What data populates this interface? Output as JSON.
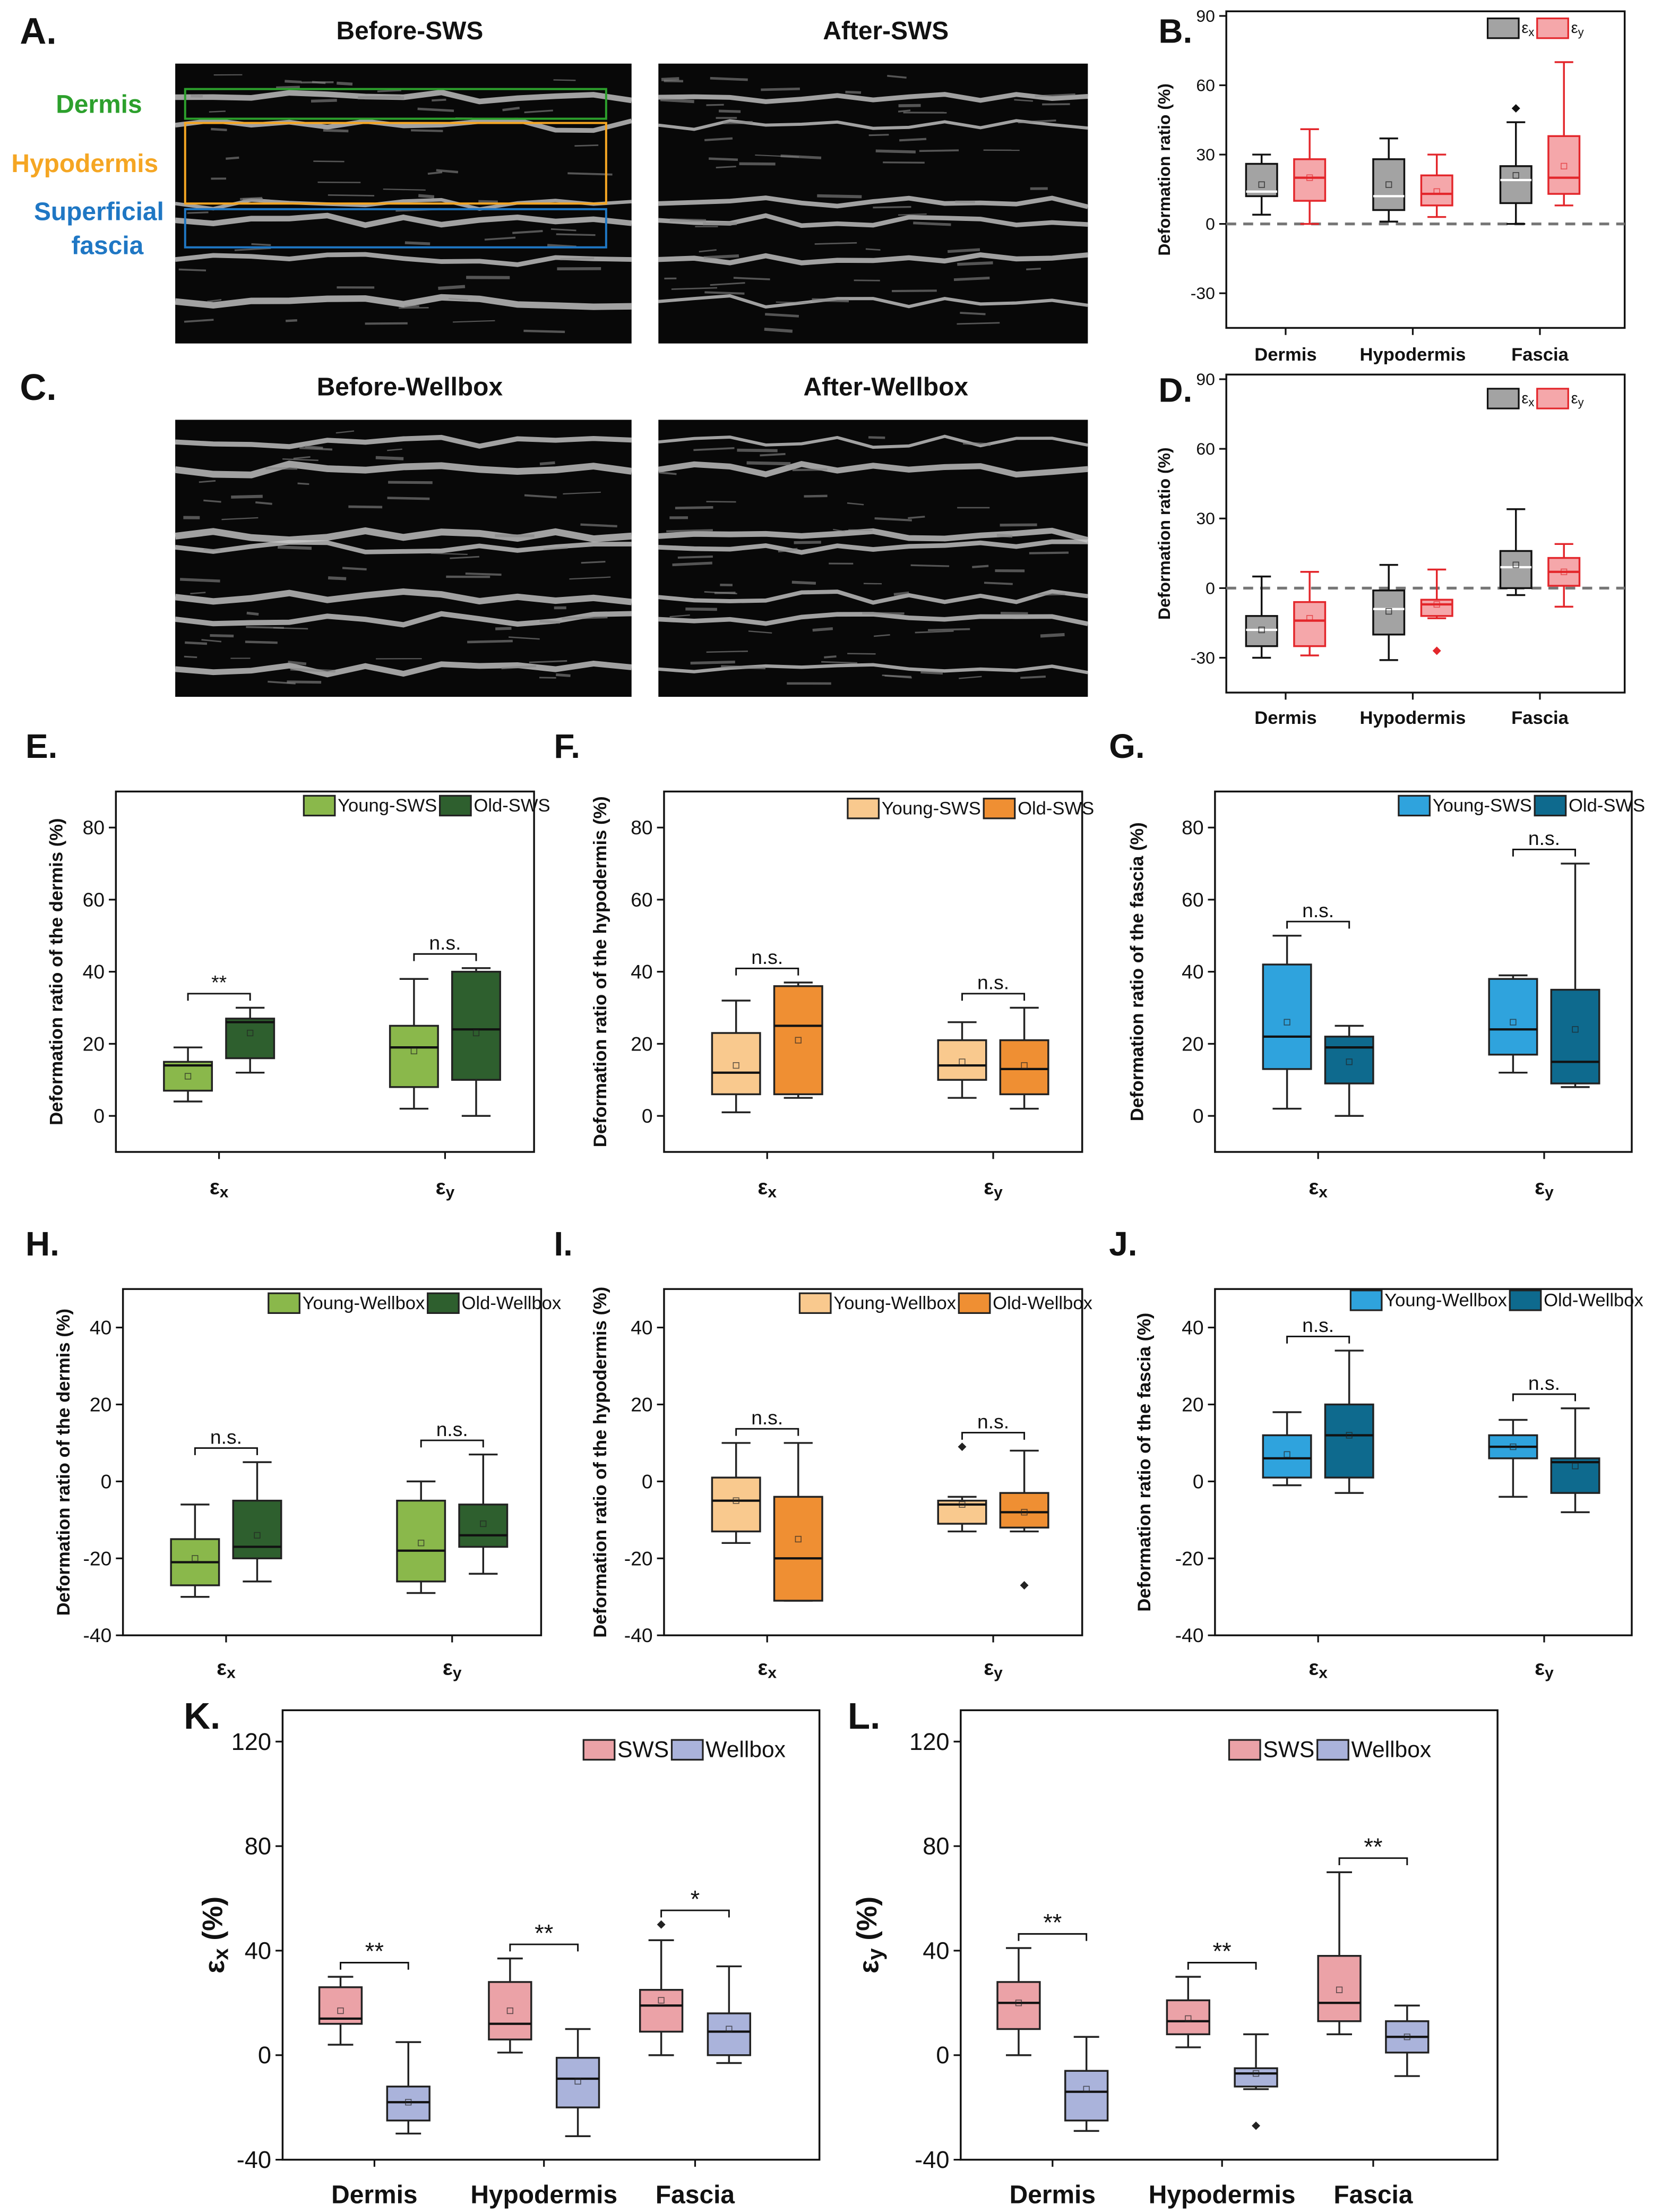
{
  "image_panels": [
    {
      "label": "A.",
      "titles": [
        "Before-SWS",
        "After-SWS"
      ],
      "layers": [
        [
          "Dermis"
        ],
        [
          "Hypodermis"
        ],
        [
          "Superficial",
          "fascia"
        ]
      ]
    },
    {
      "label": "C.",
      "titles": [
        "Before-Wellbox",
        "After-Wellbox"
      ]
    }
  ],
  "chart_data": [
    {
      "type": "box",
      "panel": "B.",
      "ylabel": "Deformation ratio (%)",
      "categories": [
        "Dermis",
        "Hypodermis",
        "Fascia"
      ],
      "ylim": [
        -45,
        92
      ],
      "yticks": [
        -30,
        0,
        30,
        60,
        90
      ],
      "ref_line": 0,
      "legend": "upper right",
      "series": [
        {
          "name": "εx",
          "color": "#a3a3a3",
          "stroke": "#111111",
          "median_color": "#ffffff",
          "boxes": [
            {
              "min": 4,
              "q1": 12,
              "median": 14,
              "q3": 26,
              "max": 30,
              "mean": 17
            },
            {
              "min": 1,
              "q1": 6,
              "median": 12,
              "q3": 28,
              "max": 37,
              "mean": 17
            },
            {
              "min": 0,
              "q1": 9,
              "median": 19,
              "q3": 25,
              "max": 44,
              "mean": 21,
              "outliers": [
                50
              ]
            }
          ]
        },
        {
          "name": "εy",
          "color": "#f5a7aa",
          "stroke": "#e3262b",
          "median_color": "#e3262b",
          "boxes": [
            {
              "min": 0,
              "q1": 10,
              "median": 20,
              "q3": 28,
              "max": 41,
              "mean": 20
            },
            {
              "min": 3,
              "q1": 8,
              "median": 13,
              "q3": 21,
              "max": 30,
              "mean": 14
            },
            {
              "min": 8,
              "q1": 13,
              "median": 20,
              "q3": 38,
              "max": 70,
              "mean": 25
            }
          ]
        }
      ]
    },
    {
      "type": "box",
      "panel": "D.",
      "ylabel": "Deformation ratio (%)",
      "categories": [
        "Dermis",
        "Hypodermis",
        "Fascia"
      ],
      "ylim": [
        -45,
        92
      ],
      "yticks": [
        -30,
        0,
        30,
        60,
        90
      ],
      "ref_line": 0,
      "legend": "upper right",
      "series": [
        {
          "name": "εx",
          "color": "#a3a3a3",
          "stroke": "#111111",
          "median_color": "#ffffff",
          "boxes": [
            {
              "min": -30,
              "q1": -25,
              "median": -18,
              "q3": -12,
              "max": 5,
              "mean": -18
            },
            {
              "min": -31,
              "q1": -20,
              "median": -9,
              "q3": -1,
              "max": 10,
              "mean": -10
            },
            {
              "min": -3,
              "q1": 0,
              "median": 9,
              "q3": 16,
              "max": 34,
              "mean": 10
            }
          ]
        },
        {
          "name": "εy",
          "color": "#f5a7aa",
          "stroke": "#e3262b",
          "median_color": "#e3262b",
          "boxes": [
            {
              "min": -29,
              "q1": -25,
              "median": -14,
              "q3": -6,
              "max": 7,
              "mean": -13
            },
            {
              "min": -13,
              "q1": -12,
              "median": -7,
              "q3": -5,
              "max": 8,
              "mean": -7,
              "outliers": [
                -27
              ]
            },
            {
              "min": -8,
              "q1": 1,
              "median": 7,
              "q3": 13,
              "max": 19,
              "mean": 7
            }
          ]
        }
      ]
    },
    {
      "type": "box",
      "panel": "E.",
      "ylabel": "Deformation ratio of the dermis (%)",
      "categories": [
        "εx",
        "εy"
      ],
      "ylim": [
        -10,
        90
      ],
      "yticks": [
        0,
        20,
        40,
        60,
        80
      ],
      "legend": "upper right",
      "series": [
        {
          "name": "Young-SWS",
          "color": "#8ab84b",
          "boxes": [
            {
              "min": 4,
              "q1": 7,
              "median": 14,
              "q3": 15,
              "max": 19,
              "mean": 11
            },
            {
              "min": 2,
              "q1": 8,
              "median": 19,
              "q3": 25,
              "max": 38,
              "mean": 18
            }
          ]
        },
        {
          "name": "Old-SWS",
          "color": "#2e5f2e",
          "boxes": [
            {
              "min": 12,
              "q1": 16,
              "median": 26,
              "q3": 27,
              "max": 30,
              "mean": 23
            },
            {
              "min": 0,
              "q1": 10,
              "median": 24,
              "q3": 40,
              "max": 41,
              "mean": 23
            }
          ]
        }
      ],
      "brackets": [
        {
          "category": 0,
          "label": "**"
        },
        {
          "category": 1,
          "label": "n.s."
        }
      ]
    },
    {
      "type": "box",
      "panel": "F.",
      "ylabel": "Deformation ratio of the hypodermis (%)",
      "categories": [
        "εx",
        "εy"
      ],
      "ylim": [
        -10,
        90
      ],
      "yticks": [
        0,
        20,
        40,
        60,
        80
      ],
      "legend": "upper right",
      "series": [
        {
          "name": "Young-SWS",
          "color": "#f9c98e",
          "boxes": [
            {
              "min": 1,
              "q1": 6,
              "median": 12,
              "q3": 23,
              "max": 32,
              "mean": 14
            },
            {
              "min": 5,
              "q1": 10,
              "median": 14,
              "q3": 21,
              "max": 26,
              "mean": 15
            }
          ]
        },
        {
          "name": "Old-SWS",
          "color": "#ef8f33",
          "boxes": [
            {
              "min": 5,
              "q1": 6,
              "median": 25,
              "q3": 36,
              "max": 37,
              "mean": 21
            },
            {
              "min": 2,
              "q1": 6,
              "median": 13,
              "q3": 21,
              "max": 30,
              "mean": 14
            }
          ]
        }
      ],
      "brackets": [
        {
          "category": 0,
          "label": "n.s."
        },
        {
          "category": 1,
          "label": "n.s."
        }
      ]
    },
    {
      "type": "box",
      "panel": "G.",
      "ylabel": "Deformation ratio of the fascia (%)",
      "categories": [
        "εx",
        "εy"
      ],
      "ylim": [
        -10,
        90
      ],
      "yticks": [
        0,
        20,
        40,
        60,
        80
      ],
      "legend": "upper right",
      "series": [
        {
          "name": "Young-SWS",
          "color": "#2fa3dd",
          "boxes": [
            {
              "min": 2,
              "q1": 13,
              "median": 22,
              "q3": 42,
              "max": 50,
              "mean": 26
            },
            {
              "min": 12,
              "q1": 17,
              "median": 24,
              "q3": 38,
              "max": 39,
              "mean": 26
            }
          ]
        },
        {
          "name": "Old-SWS",
          "color": "#0e6a8e",
          "boxes": [
            {
              "min": 0,
              "q1": 9,
              "median": 19,
              "q3": 22,
              "max": 25,
              "mean": 15
            },
            {
              "min": 8,
              "q1": 9,
              "median": 15,
              "q3": 35,
              "max": 70,
              "mean": 24
            }
          ]
        }
      ],
      "brackets": [
        {
          "category": 0,
          "label": "n.s."
        },
        {
          "category": 1,
          "label": "n.s."
        }
      ]
    },
    {
      "type": "box",
      "panel": "H.",
      "ylabel": "Deformation ratio of the dermis (%)",
      "categories": [
        "εx",
        "εy"
      ],
      "ylim": [
        -40,
        50
      ],
      "yticks": [
        -40,
        -20,
        0,
        20,
        40
      ],
      "legend": "upper right",
      "series": [
        {
          "name": "Young-Wellbox",
          "color": "#8ab84b",
          "boxes": [
            {
              "min": -30,
              "q1": -27,
              "median": -21,
              "q3": -15,
              "max": -6,
              "mean": -20
            },
            {
              "min": -29,
              "q1": -26,
              "median": -18,
              "q3": -5,
              "max": 0,
              "mean": -16
            }
          ]
        },
        {
          "name": "Old-Wellbox",
          "color": "#2e5f2e",
          "boxes": [
            {
              "min": -26,
              "q1": -20,
              "median": -17,
              "q3": -5,
              "max": 5,
              "mean": -14
            },
            {
              "min": -24,
              "q1": -17,
              "median": -14,
              "q3": -6,
              "max": 7,
              "mean": -11
            }
          ]
        }
      ],
      "brackets": [
        {
          "category": 0,
          "label": "n.s."
        },
        {
          "category": 1,
          "label": "n.s."
        }
      ]
    },
    {
      "type": "box",
      "panel": "I.",
      "ylabel": "Deformation ratio of the hypodermis (%)",
      "categories": [
        "εx",
        "εy"
      ],
      "ylim": [
        -40,
        50
      ],
      "yticks": [
        -40,
        -20,
        0,
        20,
        40
      ],
      "legend": "upper right",
      "series": [
        {
          "name": "Young-Wellbox",
          "color": "#f9c98e",
          "boxes": [
            {
              "min": -16,
              "q1": -13,
              "median": -5,
              "q3": 1,
              "max": 10,
              "mean": -5
            },
            {
              "min": -13,
              "q1": -11,
              "median": -6,
              "q3": -5,
              "max": -4,
              "mean": -6,
              "outliers": [
                9
              ]
            }
          ]
        },
        {
          "name": "Old-Wellbox",
          "color": "#ef8f33",
          "boxes": [
            {
              "min": -31,
              "q1": -31,
              "median": -20,
              "q3": -4,
              "max": 10,
              "mean": -15
            },
            {
              "min": -13,
              "q1": -12,
              "median": -8,
              "q3": -3,
              "max": 8,
              "mean": -8,
              "outliers": [
                -27
              ]
            }
          ]
        }
      ],
      "brackets": [
        {
          "category": 0,
          "label": "n.s."
        },
        {
          "category": 1,
          "label": "n.s."
        }
      ]
    },
    {
      "type": "box",
      "panel": "J.",
      "ylabel": "Deformation ratio of the fascia (%)",
      "categories": [
        "εx",
        "εy"
      ],
      "ylim": [
        -40,
        50
      ],
      "yticks": [
        -40,
        -20,
        0,
        20,
        40
      ],
      "legend": "upper right",
      "series": [
        {
          "name": "Young-Wellbox",
          "color": "#2fa3dd",
          "boxes": [
            {
              "min": -1,
              "q1": 1,
              "median": 6,
              "q3": 12,
              "max": 18,
              "mean": 7
            },
            {
              "min": -4,
              "q1": 6,
              "median": 9,
              "q3": 12,
              "max": 16,
              "mean": 9
            }
          ]
        },
        {
          "name": "Old-Wellbox",
          "color": "#0e6a8e",
          "boxes": [
            {
              "min": -3,
              "q1": 1,
              "median": 12,
              "q3": 20,
              "max": 34,
              "mean": 12
            },
            {
              "min": -8,
              "q1": -3,
              "median": 5,
              "q3": 6,
              "max": 19,
              "mean": 4
            }
          ]
        }
      ],
      "brackets": [
        {
          "category": 0,
          "label": "n.s."
        },
        {
          "category": 1,
          "label": "n.s."
        }
      ]
    },
    {
      "type": "box",
      "panel": "K.",
      "ylabel": "εx (%)",
      "categories": [
        "Dermis",
        "Hypodermis",
        "Fascia"
      ],
      "ylim": [
        -40,
        132
      ],
      "yticks": [
        -40,
        0,
        40,
        80,
        120
      ],
      "legend": "upper right",
      "series": [
        {
          "name": "SWS",
          "color": "#eba2a7",
          "boxes": [
            {
              "min": 4,
              "q1": 12,
              "median": 14,
              "q3": 26,
              "max": 30,
              "mean": 17
            },
            {
              "min": 1,
              "q1": 6,
              "median": 12,
              "q3": 28,
              "max": 37,
              "mean": 17
            },
            {
              "min": 0,
              "q1": 9,
              "median": 19,
              "q3": 25,
              "max": 44,
              "mean": 21,
              "outliers": [
                50
              ]
            }
          ]
        },
        {
          "name": "Wellbox",
          "color": "#aab3db",
          "boxes": [
            {
              "min": -30,
              "q1": -25,
              "median": -18,
              "q3": -12,
              "max": 5,
              "mean": -18
            },
            {
              "min": -31,
              "q1": -20,
              "median": -9,
              "q3": -1,
              "max": 10,
              "mean": -10
            },
            {
              "min": -3,
              "q1": 0,
              "median": 9,
              "q3": 16,
              "max": 34,
              "mean": 10
            }
          ]
        }
      ],
      "brackets": [
        {
          "category": 0,
          "label": "**"
        },
        {
          "category": 1,
          "label": "**"
        },
        {
          "category": 2,
          "label": "*"
        }
      ]
    },
    {
      "type": "box",
      "panel": "L.",
      "ylabel": "εy (%)",
      "categories": [
        "Dermis",
        "Hypodermis",
        "Fascia"
      ],
      "ylim": [
        -40,
        132
      ],
      "yticks": [
        -40,
        0,
        40,
        80,
        120
      ],
      "legend": "upper right",
      "series": [
        {
          "name": "SWS",
          "color": "#eba2a7",
          "boxes": [
            {
              "min": 0,
              "q1": 10,
              "median": 20,
              "q3": 28,
              "max": 41,
              "mean": 20
            },
            {
              "min": 3,
              "q1": 8,
              "median": 13,
              "q3": 21,
              "max": 30,
              "mean": 14
            },
            {
              "min": 8,
              "q1": 13,
              "median": 20,
              "q3": 38,
              "max": 70,
              "mean": 25
            }
          ]
        },
        {
          "name": "Wellbox",
          "color": "#aab3db",
          "boxes": [
            {
              "min": -29,
              "q1": -25,
              "median": -14,
              "q3": -6,
              "max": 7,
              "mean": -13
            },
            {
              "min": -13,
              "q1": -12,
              "median": -7,
              "q3": -5,
              "max": 8,
              "mean": -7,
              "outliers": [
                -27
              ]
            },
            {
              "min": -8,
              "q1": 1,
              "median": 7,
              "q3": 13,
              "max": 19,
              "mean": 7
            }
          ]
        }
      ],
      "brackets": [
        {
          "category": 0,
          "label": "**"
        },
        {
          "category": 1,
          "label": "**"
        },
        {
          "category": 2,
          "label": "**"
        }
      ]
    }
  ]
}
